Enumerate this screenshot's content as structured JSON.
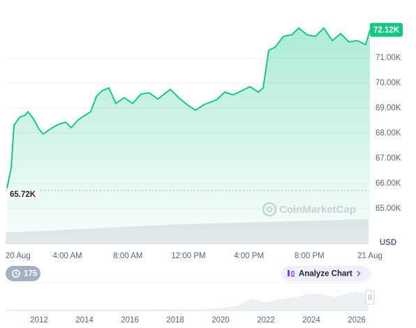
{
  "chart_data": {
    "type": "line",
    "color": "#16c784",
    "x": [
      0,
      0.28,
      0.46,
      0.83,
      1.2,
      1.38,
      1.75,
      2.12,
      2.4,
      2.86,
      3.42,
      3.88,
      4.25,
      4.71,
      5.17,
      5.54,
      5.91,
      6.28,
      6.74,
      7.2,
      7.75,
      8.31,
      8.86,
      9.42,
      9.97,
      10.8,
      11.35,
      11.91,
      12.46,
      13.02,
      13.85,
      14.4,
      14.95,
      15.51,
      16.06,
      16.62,
      16.94,
      17.12,
      17.31,
      17.72,
      18.28,
      18.83,
      19.29,
      19.85,
      20.4,
      20.95,
      21.51,
      22.06,
      22.61,
      23.17,
      23.72,
      24
    ],
    "values": [
      65810,
      66640,
      68310,
      68640,
      68720,
      68860,
      68580,
      68170,
      67970,
      68170,
      68360,
      68440,
      68220,
      68530,
      68720,
      68860,
      69470,
      69690,
      69810,
      69190,
      69420,
      69190,
      69560,
      69610,
      69360,
      69750,
      69420,
      69140,
      68920,
      69140,
      69330,
      69640,
      69530,
      69690,
      69860,
      69640,
      69810,
      70530,
      71310,
      71420,
      71860,
      71920,
      72190,
      71920,
      71860,
      72190,
      71690,
      71970,
      71640,
      71690,
      71530,
      72120
    ],
    "xlim": [
      0,
      24
    ],
    "xticks": [
      {
        "value": 0,
        "label": "20 Aug"
      },
      {
        "value": 4,
        "label": "4:00 AM"
      },
      {
        "value": 8,
        "label": "8:00 AM"
      },
      {
        "value": 12,
        "label": "12:00 PM"
      },
      {
        "value": 16,
        "label": "4:00 PM"
      },
      {
        "value": 20,
        "label": "8:00 PM"
      },
      {
        "value": 24,
        "label": "21 Aug"
      }
    ],
    "ylim": [
      63580,
      73030
    ],
    "yticks": [
      {
        "value": 65000,
        "label": "65.00K"
      },
      {
        "value": 66000,
        "label": "66.00K"
      },
      {
        "value": 67000,
        "label": "67.00K"
      },
      {
        "value": 68000,
        "label": "68.00K"
      },
      {
        "value": 69000,
        "label": "69.00K"
      },
      {
        "value": 70000,
        "label": "70.00K"
      },
      {
        "value": 71000,
        "label": "71.00K"
      }
    ],
    "grid": true,
    "last_price": {
      "value": 72120,
      "label": "72.12K"
    },
    "start_price": {
      "value": 65720,
      "label": "65.72K"
    },
    "currency": "USD",
    "watermark": "CoinMarketCap"
  },
  "controls": {
    "count_button": "175",
    "analyze_button": "Analyze Chart"
  },
  "navigator": {
    "labels": [
      "2012",
      "2014",
      "2016",
      "2018",
      "2020",
      "2022",
      "2024",
      "2026"
    ]
  }
}
